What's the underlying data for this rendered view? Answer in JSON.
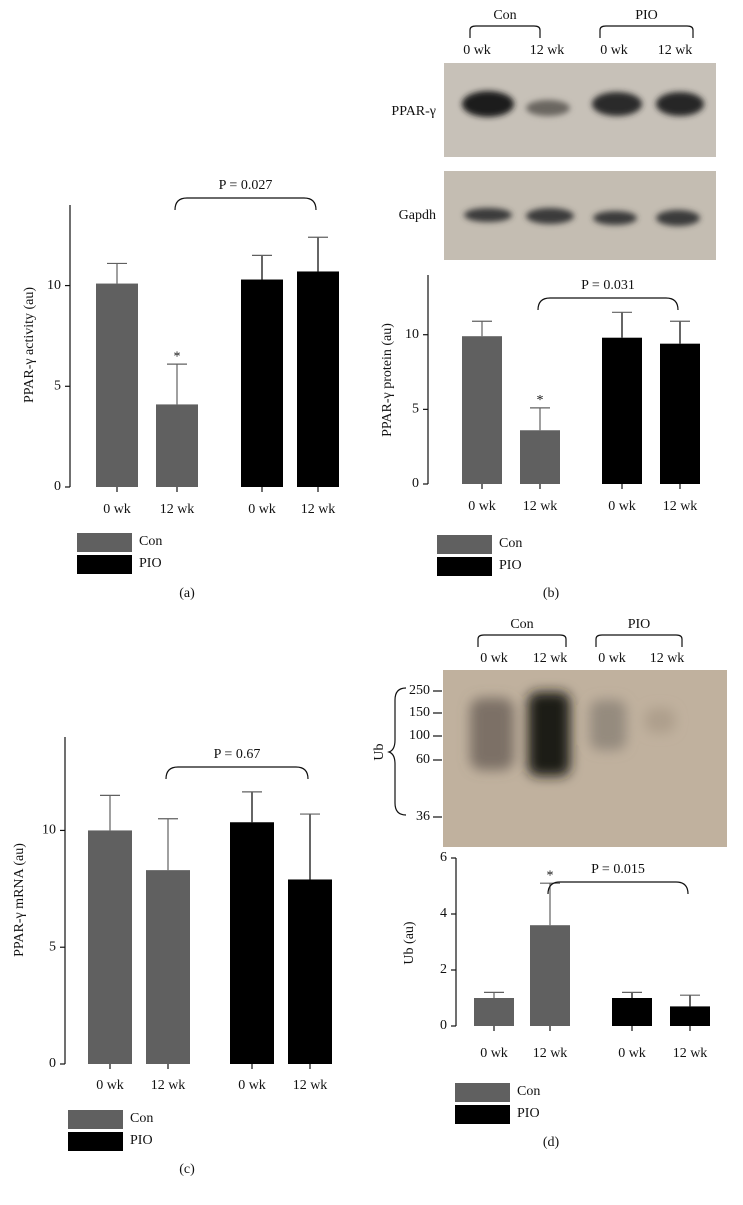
{
  "chart_data": [
    {
      "type": "bar",
      "label": "(a)",
      "ylabel": "PPAR-γ activity (au)",
      "categories": [
        "0 wk",
        "12 wk",
        "0 wk",
        "12 wk"
      ],
      "series": [
        {
          "name": "Con",
          "color": "#606060",
          "values": [
            10.1,
            4.1,
            null,
            null
          ],
          "errors": [
            1.0,
            2.0,
            null,
            null
          ]
        },
        {
          "name": "PIO",
          "color": "#000000",
          "values": [
            null,
            null,
            10.3,
            10.7
          ],
          "errors": [
            null,
            null,
            1.2,
            1.7
          ]
        }
      ],
      "ylim": [
        0,
        14
      ],
      "yticks": [
        0,
        5,
        10
      ],
      "p_label": "P = 0.027",
      "significance_marker": "*"
    },
    {
      "type": "bar",
      "label": "(b)",
      "ylabel": "PPAR-γ protein (au)",
      "categories": [
        "0 wk",
        "12 wk",
        "0 wk",
        "12 wk"
      ],
      "series": [
        {
          "name": "Con",
          "color": "#606060",
          "values": [
            9.9,
            3.6,
            null,
            null
          ],
          "errors": [
            1.0,
            1.5,
            null,
            null
          ]
        },
        {
          "name": "PIO",
          "color": "#000000",
          "values": [
            null,
            null,
            9.8,
            9.4
          ],
          "errors": [
            null,
            null,
            1.7,
            1.5
          ]
        }
      ],
      "ylim": [
        0,
        14
      ],
      "yticks": [
        0,
        5,
        10
      ],
      "p_label": "P = 0.031",
      "significance_marker": "*",
      "blot": {
        "groups": [
          "Con",
          "PIO"
        ],
        "lanes": [
          "0 wk",
          "12 wk",
          "0 wk",
          "12 wk"
        ],
        "rows": [
          "PPAR-γ",
          "Gapdh"
        ]
      }
    },
    {
      "type": "bar",
      "label": "(c)",
      "ylabel": "PPAR-γ mRNA (au)",
      "categories": [
        "0 wk",
        "12 wk",
        "0 wk",
        "12 wk"
      ],
      "series": [
        {
          "name": "Con",
          "color": "#606060",
          "values": [
            10.0,
            8.3,
            null,
            null
          ],
          "errors": [
            1.5,
            2.2,
            null,
            null
          ]
        },
        {
          "name": "PIO",
          "color": "#000000",
          "values": [
            null,
            null,
            10.35,
            7.9
          ],
          "errors": [
            null,
            null,
            1.3,
            2.8
          ]
        }
      ],
      "ylim": [
        0,
        14
      ],
      "yticks": [
        0,
        5,
        10
      ],
      "p_label": "P = 0.67"
    },
    {
      "type": "bar",
      "label": "(d)",
      "ylabel": "Ub (au)",
      "categories": [
        "0 wk",
        "12 wk",
        "0 wk",
        "12 wk"
      ],
      "series": [
        {
          "name": "Con",
          "color": "#606060",
          "values": [
            1.0,
            3.6,
            null,
            null
          ],
          "errors": [
            0.2,
            1.5,
            null,
            null
          ]
        },
        {
          "name": "PIO",
          "color": "#000000",
          "values": [
            null,
            null,
            1.0,
            0.7
          ],
          "errors": [
            null,
            null,
            0.2,
            0.4
          ]
        }
      ],
      "ylim": [
        0,
        6
      ],
      "yticks": [
        0,
        2,
        4,
        6
      ],
      "p_label": "P = 0.015",
      "significance_marker": "*",
      "blot": {
        "groups": [
          "Con",
          "PIO"
        ],
        "lanes": [
          "0 wk",
          "12 wk",
          "0 wk",
          "12 wk"
        ],
        "markers": [
          250,
          150,
          100,
          60,
          36
        ],
        "label": "Ub"
      }
    }
  ]
}
